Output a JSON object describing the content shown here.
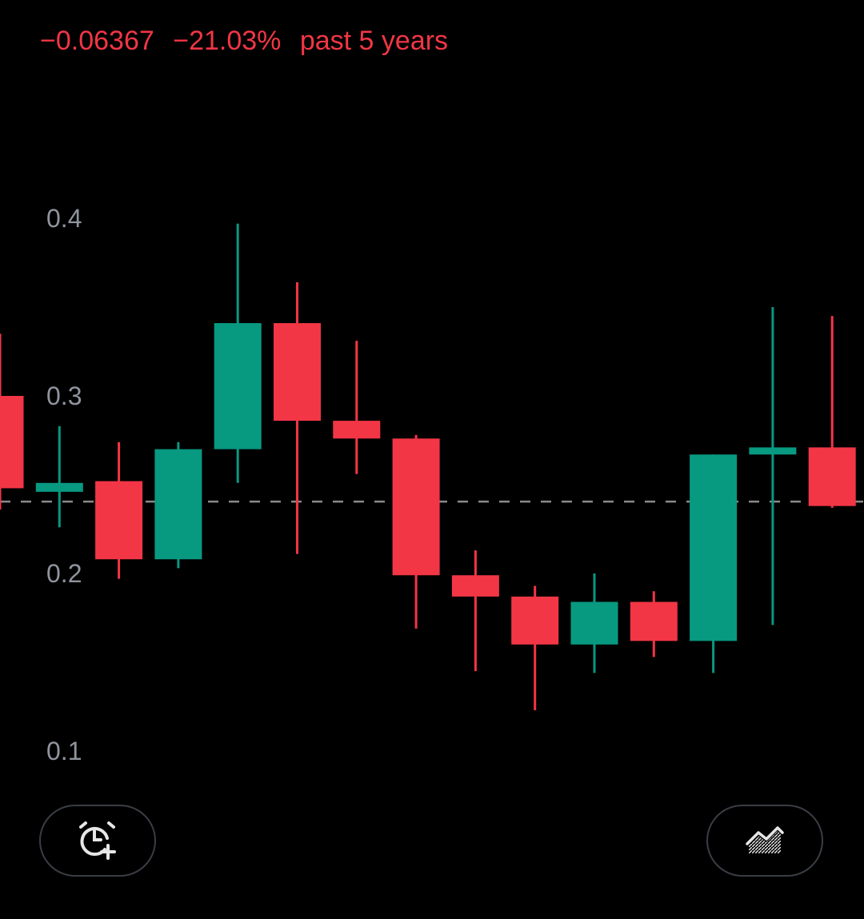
{
  "header": {
    "change_value": "−0.06367",
    "change_percent": "−21.03%",
    "period": "past 5 years"
  },
  "colors": {
    "background": "#000000",
    "up": "#089981",
    "down": "#f23645",
    "axis_text": "#8f949e",
    "reference_line": "#8a8a8a",
    "button_border": "#3a3d44",
    "icon": "#e6e6e6"
  },
  "chart_data": {
    "type": "candlestick",
    "y_ticks": [
      {
        "value": 0.4,
        "label": "0.4"
      },
      {
        "value": 0.3,
        "label": "0.3"
      },
      {
        "value": 0.2,
        "label": "0.2"
      },
      {
        "value": 0.1,
        "label": "0.1"
      }
    ],
    "reference_line": 0.2405,
    "candles": [
      {
        "open": 0.3,
        "high": 0.335,
        "low": 0.236,
        "close": 0.248
      },
      {
        "open": 0.246,
        "high": 0.283,
        "low": 0.226,
        "close": 0.251
      },
      {
        "open": 0.252,
        "high": 0.274,
        "low": 0.197,
        "close": 0.208
      },
      {
        "open": 0.208,
        "high": 0.274,
        "low": 0.203,
        "close": 0.27
      },
      {
        "open": 0.27,
        "high": 0.397,
        "low": 0.251,
        "close": 0.341
      },
      {
        "open": 0.341,
        "high": 0.364,
        "low": 0.211,
        "close": 0.286
      },
      {
        "open": 0.286,
        "high": 0.331,
        "low": 0.256,
        "close": 0.276
      },
      {
        "open": 0.276,
        "high": 0.278,
        "low": 0.169,
        "close": 0.199
      },
      {
        "open": 0.199,
        "high": 0.213,
        "low": 0.145,
        "close": 0.187
      },
      {
        "open": 0.187,
        "high": 0.193,
        "low": 0.123,
        "close": 0.16
      },
      {
        "open": 0.16,
        "high": 0.2,
        "low": 0.144,
        "close": 0.184
      },
      {
        "open": 0.184,
        "high": 0.19,
        "low": 0.153,
        "close": 0.162
      },
      {
        "open": 0.162,
        "high": 0.267,
        "low": 0.144,
        "close": 0.267
      },
      {
        "open": 0.267,
        "high": 0.35,
        "low": 0.171,
        "close": 0.271
      },
      {
        "open": 0.271,
        "high": 0.345,
        "low": 0.237,
        "close": 0.238
      }
    ]
  },
  "buttons": {
    "alert_icon": "alarm-clock-plus-icon",
    "indicator_icon": "area-chart-icon"
  }
}
